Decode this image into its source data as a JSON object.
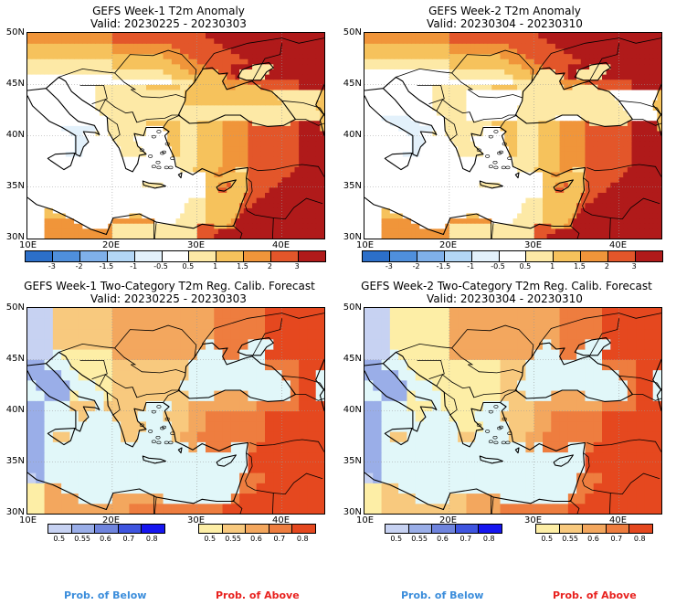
{
  "panels": [
    {
      "title": "GEFS Week-1 T2m Anomaly",
      "valid": "Valid: 20230225 - 20230303"
    },
    {
      "title": "GEFS Week-2 T2m Anomaly",
      "valid": "Valid: 20230304 - 20230310"
    },
    {
      "title": "GEFS Week-1 Two-Category T2m Reg. Calib. Forecast",
      "valid": "Valid: 20230225 - 20230303"
    },
    {
      "title": "GEFS Week-2 Two-Category T2m Reg. Calib. Forecast",
      "valid": "Valid: 20230304 - 20230310"
    }
  ],
  "lat_ticks": [
    "50N",
    "45N",
    "40N",
    "35N",
    "30N"
  ],
  "lon_ticks": [
    "10E",
    "20E",
    "30E",
    "40E"
  ],
  "anomaly_scale": {
    "labels": [
      "-3",
      "-2",
      "-1.5",
      "-1",
      "-0.5",
      "0.5",
      "1",
      "1.5",
      "2",
      "3"
    ],
    "colors": [
      "#2c6fc9",
      "#4f8fdc",
      "#7fb0ea",
      "#b3d6f5",
      "#e3f1fb",
      "#ffffff",
      "#fde9a6",
      "#f6c25c",
      "#f0953a",
      "#e3562a",
      "#b01a1a"
    ]
  },
  "prob_below": {
    "labels": [
      "0.5",
      "0.55",
      "0.6",
      "0.7",
      "0.8"
    ],
    "colors": [
      "#c7d2f2",
      "#9aaee8",
      "#6f84dd",
      "#3f55e0",
      "#1616f0"
    ]
  },
  "prob_above": {
    "labels": [
      "0.5",
      "0.55",
      "0.6",
      "0.7",
      "0.8"
    ],
    "colors": [
      "#fdeea6",
      "#f8c97e",
      "#f3a75e",
      "#ee7d3f",
      "#e5481f"
    ]
  },
  "prob_captions": {
    "below": "Prob. of Below",
    "above": "Prob. of Above"
  },
  "colors": {
    "below_text": "#3b8ddb",
    "above_text": "#e8221f",
    "sea": "#e1f7f9"
  }
}
